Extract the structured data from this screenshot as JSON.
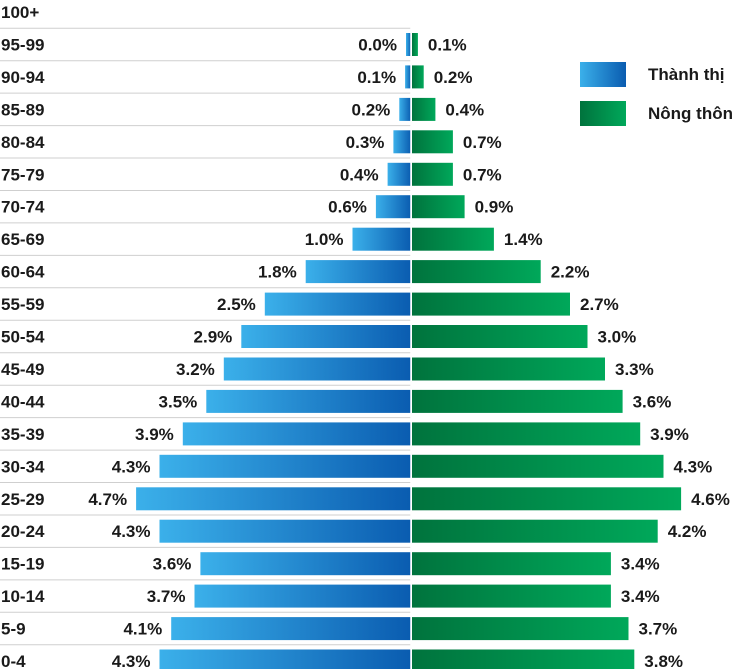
{
  "chart_data": {
    "type": "bar",
    "orientation": "horizontal-pyramid",
    "categories": [
      "100+",
      "95-99",
      "90-94",
      "85-89",
      "80-84",
      "75-79",
      "70-74",
      "65-69",
      "60-64",
      "55-59",
      "50-54",
      "45-49",
      "40-44",
      "35-39",
      "30-34",
      "25-29",
      "20-24",
      "15-19",
      "10-14",
      "5-9",
      "0-4"
    ],
    "series": [
      {
        "name": "Thành thị",
        "side": "left",
        "values": [
          null,
          0.0,
          0.1,
          0.2,
          0.3,
          0.4,
          0.6,
          1.0,
          1.8,
          2.5,
          2.9,
          3.2,
          3.5,
          3.9,
          4.3,
          4.7,
          4.3,
          3.6,
          3.7,
          4.1,
          4.3
        ],
        "labels": [
          "",
          "0.0%",
          "0.1%",
          "0.2%",
          "0.3%",
          "0.4%",
          "0.6%",
          "1.0%",
          "1.8%",
          "2.5%",
          "2.9%",
          "3.2%",
          "3.5%",
          "3.9%",
          "4.3%",
          "4.7%",
          "4.3%",
          "3.6%",
          "3.7%",
          "4.1%",
          "4.3%"
        ],
        "color_light": "#3bb0ea",
        "color_dark": "#0a5cb0"
      },
      {
        "name": "Nông thôn",
        "side": "right",
        "values": [
          null,
          0.1,
          0.2,
          0.4,
          0.7,
          0.7,
          0.9,
          1.4,
          2.2,
          2.7,
          3.0,
          3.3,
          3.6,
          3.9,
          4.3,
          4.6,
          4.2,
          3.4,
          3.4,
          3.7,
          3.8
        ],
        "labels": [
          "",
          "0.1%",
          "0.2%",
          "0.4%",
          "0.7%",
          "0.7%",
          "0.9%",
          "1.4%",
          "2.2%",
          "2.7%",
          "3.0%",
          "3.3%",
          "3.6%",
          "3.9%",
          "4.3%",
          "4.6%",
          "4.2%",
          "3.4%",
          "3.4%",
          "3.7%",
          "3.8%"
        ],
        "color_light": "#00a85a",
        "color_dark": "#00733d"
      }
    ],
    "legend": {
      "position": "top-right",
      "entries": [
        "Thành thị",
        "Nông thôn"
      ]
    },
    "grid": true
  }
}
